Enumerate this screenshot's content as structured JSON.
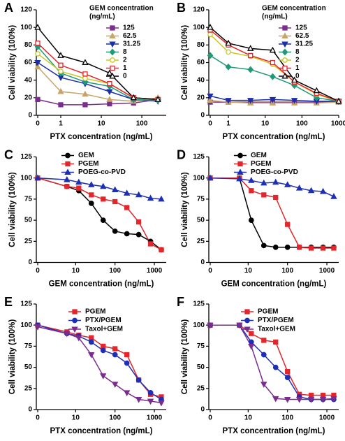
{
  "chart_data": [
    {
      "type": "line",
      "panel": "A",
      "xlabel": "PTX concentration (ng/mL)",
      "ylabel": "Cell viability (100%)",
      "xscale": "log",
      "x": [
        0,
        1,
        4,
        16,
        62.5,
        250
      ],
      "xlim": [
        0,
        400
      ],
      "xticks": [
        0,
        1,
        10,
        100
      ],
      "ylim": [
        0,
        120
      ],
      "yticks": [
        0,
        20,
        40,
        60,
        80,
        100,
        120
      ],
      "legend_title": [
        "GEM concentration",
        "(ng/mL)"
      ],
      "series": [
        {
          "name": "125",
          "color": "#7b2d8e",
          "marker": "square",
          "values": [
            18,
            12,
            12,
            13,
            14,
            18
          ]
        },
        {
          "name": "62.5",
          "color": "#c9a46a",
          "marker": "triangle",
          "values": [
            55,
            27,
            24,
            18,
            16,
            20
          ]
        },
        {
          "name": "31.25",
          "color": "#1c2fa8",
          "marker": "triangle-down",
          "values": [
            60,
            43,
            36,
            27,
            18,
            16
          ]
        },
        {
          "name": "8",
          "color": "#1f9a78",
          "marker": "diamond",
          "values": [
            78,
            48,
            38,
            33,
            18,
            17
          ]
        },
        {
          "name": "2",
          "color": "#c8c81e",
          "marker": "circle-open",
          "values": [
            70,
            50,
            42,
            36,
            20,
            18
          ]
        },
        {
          "name": "1",
          "color": "#e3262b",
          "marker": "square-open",
          "values": [
            82,
            57,
            47,
            36,
            20,
            18
          ]
        },
        {
          "name": "0",
          "color": "#000000",
          "marker": "triangle-open",
          "values": [
            100,
            68,
            60,
            48,
            20,
            18
          ]
        }
      ]
    },
    {
      "type": "line",
      "panel": "B",
      "xlabel": "PTX concentration (ng/mL)",
      "ylabel": "Cell viability (100%)",
      "xscale": "log",
      "x": [
        0,
        1,
        4,
        16,
        62.5,
        250,
        1000
      ],
      "xlim": [
        0,
        1000
      ],
      "xticks": [
        0,
        1,
        10,
        100,
        1000
      ],
      "ylim": [
        0,
        120
      ],
      "yticks": [
        0,
        20,
        40,
        60,
        80,
        100,
        120
      ],
      "legend_title": [
        "GEM concentration",
        "(ng/mL)"
      ],
      "series": [
        {
          "name": "125",
          "color": "#7b2d8e",
          "marker": "square",
          "values": [
            15,
            15,
            15,
            15,
            15,
            15,
            15
          ]
        },
        {
          "name": "62.5",
          "color": "#c9a46a",
          "marker": "triangle",
          "values": [
            17,
            15,
            14,
            14,
            14,
            14,
            15
          ]
        },
        {
          "name": "31.25",
          "color": "#1c2fa8",
          "marker": "triangle-down",
          "values": [
            22,
            17,
            17,
            18,
            17,
            16,
            16
          ]
        },
        {
          "name": "8",
          "color": "#1f9a78",
          "marker": "diamond",
          "values": [
            68,
            55,
            52,
            44,
            34,
            20,
            16
          ]
        },
        {
          "name": "2",
          "color": "#c8c81e",
          "marker": "circle-open",
          "values": [
            92,
            72,
            67,
            58,
            38,
            24,
            16
          ]
        },
        {
          "name": "1",
          "color": "#e3262b",
          "marker": "square-open",
          "values": [
            97,
            80,
            68,
            60,
            38,
            25,
            16
          ]
        },
        {
          "name": "0",
          "color": "#000000",
          "marker": "triangle-open",
          "values": [
            100,
            82,
            76,
            74,
            40,
            28,
            16
          ]
        }
      ]
    },
    {
      "type": "line",
      "panel": "C",
      "xlabel": "GEM concentration (ng/mL)",
      "ylabel": "Cell viability (100%)",
      "xscale": "log",
      "x": [
        0,
        6,
        12,
        25,
        50,
        100,
        200,
        400,
        800,
        1500
      ],
      "xlim": [
        0,
        2000
      ],
      "xticks": [
        0,
        10,
        100,
        1000
      ],
      "ylim": [
        0,
        125
      ],
      "yticks": [
        0,
        25,
        50,
        75,
        100,
        125
      ],
      "series": [
        {
          "name": "GEM",
          "color": "#000000",
          "marker": "circle",
          "values": [
            100,
            90,
            85,
            70,
            50,
            37,
            34,
            33,
            25,
            15
          ]
        },
        {
          "name": "PGEM",
          "color": "#e3262b",
          "marker": "square",
          "values": [
            100,
            90,
            88,
            80,
            75,
            72,
            65,
            48,
            22,
            15
          ]
        },
        {
          "name": "POEG-co-PVD",
          "color": "#1c2fb5",
          "marker": "triangle",
          "values": [
            100,
            98,
            95,
            92,
            90,
            86,
            82,
            80,
            76,
            75
          ]
        }
      ]
    },
    {
      "type": "line",
      "panel": "D",
      "xlabel": "GEM concentration (ng/mL)",
      "ylabel": "Cell viability (100%)",
      "xscale": "log",
      "x": [
        0,
        6,
        12,
        25,
        50,
        100,
        200,
        400,
        800,
        1500
      ],
      "xlim": [
        0,
        2000
      ],
      "xticks": [
        0,
        10,
        100,
        1000
      ],
      "ylim": [
        0,
        125
      ],
      "yticks": [
        0,
        25,
        50,
        75,
        100,
        125
      ],
      "series": [
        {
          "name": "GEM",
          "color": "#000000",
          "marker": "circle",
          "values": [
            100,
            100,
            50,
            20,
            18,
            18,
            18,
            18,
            18,
            18
          ]
        },
        {
          "name": "PGEM",
          "color": "#e3262b",
          "marker": "square",
          "values": [
            100,
            100,
            85,
            80,
            77,
            45,
            18,
            17,
            17,
            17
          ]
        },
        {
          "name": "POEG-co-PVD",
          "color": "#1c2fb5",
          "marker": "triangle",
          "values": [
            100,
            99,
            97,
            94,
            95,
            92,
            88,
            85,
            84,
            78
          ]
        }
      ]
    },
    {
      "type": "line",
      "panel": "E",
      "xlabel": "PTX concentration (ng/mL)",
      "ylabel": "Cell viability (100%)",
      "xscale": "log",
      "x": [
        0,
        6,
        12,
        25,
        50,
        100,
        200,
        400,
        800,
        1500
      ],
      "xlim": [
        0,
        2000
      ],
      "xticks": [
        0,
        10,
        100,
        1000
      ],
      "ylim": [
        0,
        125
      ],
      "yticks": [
        0,
        25,
        50,
        75,
        100,
        125
      ],
      "series": [
        {
          "name": "PGEM",
          "color": "#e3262b",
          "marker": "square",
          "values": [
            100,
            92,
            88,
            85,
            75,
            72,
            65,
            35,
            18,
            15
          ]
        },
        {
          "name": "PTX/PGEM",
          "color": "#1c2fb5",
          "marker": "circle",
          "values": [
            100,
            90,
            87,
            80,
            70,
            65,
            55,
            35,
            20,
            12
          ]
        },
        {
          "name": "Taxol+GEM",
          "color": "#7b2d8e",
          "marker": "triangle-down",
          "values": [
            98,
            90,
            85,
            65,
            40,
            30,
            20,
            12,
            10,
            8
          ]
        }
      ]
    },
    {
      "type": "line",
      "panel": "F",
      "xlabel": "PTX concentration (ng/mL)",
      "ylabel": "Cell viability (100%)",
      "xscale": "log",
      "x": [
        0,
        6,
        12,
        25,
        50,
        100,
        200,
        400,
        800,
        1500
      ],
      "xlim": [
        0,
        2000
      ],
      "xticks": [
        0,
        10,
        100,
        1000
      ],
      "ylim": [
        0,
        125
      ],
      "yticks": [
        0,
        25,
        50,
        75,
        100,
        125
      ],
      "series": [
        {
          "name": "PGEM",
          "color": "#e3262b",
          "marker": "square",
          "values": [
            100,
            100,
            90,
            82,
            80,
            45,
            18,
            17,
            17,
            17
          ]
        },
        {
          "name": "PTX/PGEM",
          "color": "#1c2fb5",
          "marker": "circle",
          "values": [
            100,
            100,
            80,
            65,
            50,
            38,
            15,
            12,
            12,
            12
          ]
        },
        {
          "name": "Taxol+GEM",
          "color": "#7b2d8e",
          "marker": "triangle-down",
          "values": [
            100,
            100,
            75,
            30,
            13,
            12,
            12,
            12,
            12,
            13
          ]
        }
      ]
    }
  ]
}
